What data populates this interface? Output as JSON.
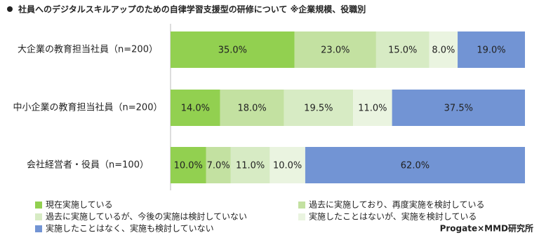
{
  "chart_data": {
    "type": "stacked-bar-horizontal",
    "title": "社員へのデジタルスキルアップのための自律学習支援型の研修について ※企業規模、役職別",
    "categories": [
      "大企業の教育担当社員（n=200）",
      "中小企業の教育担当社員（n=200）",
      "会社経営者・役員（n=100）"
    ],
    "xlim": [
      0,
      100
    ],
    "series": [
      {
        "name": "現在実施している",
        "color": "#92d050",
        "values": [
          35,
          14,
          10
        ],
        "value_labels": [
          "35.0%",
          "14.0%",
          "10.0%"
        ]
      },
      {
        "name": "過去に実施しており、再度実施を検討している",
        "color": "#c3e1a1",
        "values": [
          23,
          18,
          7
        ],
        "value_labels": [
          "23.0%",
          "18.0%",
          "7.0%"
        ]
      },
      {
        "name": "過去に実施しているが、今後の実施は検討していない",
        "color": "#d7ebc4",
        "values": [
          15,
          19.5,
          11
        ],
        "value_labels": [
          "15.0%",
          "19.5%",
          "11.0%"
        ]
      },
      {
        "name": "実施したことはないが、実施を検討している",
        "color": "#eaf4e0",
        "values": [
          8,
          11,
          10
        ],
        "value_labels": [
          "8.0%",
          "11.0%",
          "10.0%"
        ]
      },
      {
        "name": "実施したことはなく、実施も検討していない",
        "color": "#7294d4",
        "values": [
          19,
          37.5,
          62
        ],
        "value_labels": [
          "19.0%",
          "37.5%",
          "62.0%"
        ]
      }
    ],
    "source": "Progate×MMD研究所"
  }
}
